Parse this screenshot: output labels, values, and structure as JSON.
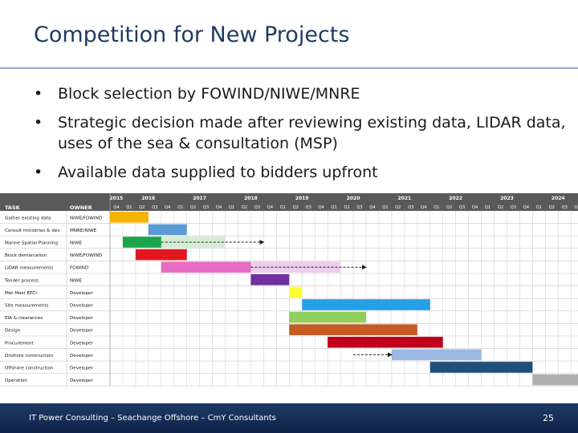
{
  "slide": {
    "title": "Competition for New Projects",
    "bullets": [
      "Block selection by FOWIND/NIWE/MNRE",
      "Strategic decision made after reviewing existing data, LIDAR data, uses of the sea & consultation (MSP)",
      "Available data supplied to bidders upfront"
    ],
    "bullet_glyph": "•"
  },
  "gantt": {
    "header": {
      "task": "TASK",
      "owner": "OWNER"
    },
    "years": [
      "2015",
      "2016",
      "2017",
      "2018",
      "2019",
      "2020",
      "2021",
      "2022",
      "2023",
      "2024"
    ],
    "quarters": [
      "Q4",
      "Q1",
      "Q2",
      "Q3",
      "Q4",
      "Q1",
      "Q2",
      "Q3",
      "Q4",
      "Q1",
      "Q2",
      "Q3",
      "Q4",
      "Q1",
      "Q2",
      "Q3",
      "Q4",
      "Q1",
      "Q2",
      "Q3",
      "Q4",
      "Q1",
      "Q2",
      "Q3",
      "Q4",
      "Q1",
      "Q2",
      "Q3",
      "Q4",
      "Q1",
      "Q2",
      "Q3",
      "Q4",
      "Q1",
      "Q2",
      "Q3",
      "Q4"
    ],
    "tasks": [
      {
        "task": "Gather existing data",
        "owner": "NIWE/FOWIND",
        "start": 0,
        "end": 3,
        "color": "#f5b400"
      },
      {
        "task": "Consult ministries & dev",
        "owner": "MNRE/NIWE",
        "start": 3,
        "end": 6,
        "color": "#5b9bd5"
      },
      {
        "task": "Marine Spatial Planning",
        "owner": "NIWE",
        "start": 1,
        "end": 4,
        "color": "#1ba44a",
        "ext_end": 9,
        "ext_color": "#d3ecd3"
      },
      {
        "task": "Block demarcation",
        "owner": "NIWE/FOWIND",
        "start": 2,
        "end": 6,
        "color": "#e3161e"
      },
      {
        "task": "LIDAR measurements",
        "owner": "FOWIND",
        "start": 4,
        "end": 11,
        "color": "#e86bc4",
        "ext_end": 18,
        "ext_color": "#efcdec"
      },
      {
        "task": "Tender process",
        "owner": "NIWE",
        "start": 11,
        "end": 14,
        "color": "#7030a0"
      },
      {
        "task": "Met Mast EPCI",
        "owner": "Developer",
        "start": 14,
        "end": 15,
        "color": "#ffff33"
      },
      {
        "task": "Site measurements",
        "owner": "Developer",
        "start": 15,
        "end": 25,
        "color": "#23a0e8"
      },
      {
        "task": "EIA & clearances",
        "owner": "Developer",
        "start": 14,
        "end": 20,
        "color": "#8fcf5a"
      },
      {
        "task": "Design",
        "owner": "Developer",
        "start": 14,
        "end": 24,
        "color": "#c55a24"
      },
      {
        "task": "Procurement",
        "owner": "Developer",
        "start": 17,
        "end": 26,
        "color": "#c0001a"
      },
      {
        "task": "Onshore construction",
        "owner": "Developer",
        "start": 22,
        "end": 29,
        "color": "#9bb7e3"
      },
      {
        "task": "Offshore construction",
        "owner": "Developer",
        "start": 25,
        "end": 33,
        "color": "#1f4e79"
      },
      {
        "task": "Operation",
        "owner": "Developer",
        "start": 33,
        "end": 37,
        "color": "#b0b0b0"
      }
    ],
    "arrows": [
      {
        "row": 2,
        "from": 4,
        "to": 12
      },
      {
        "row": 4,
        "from": 11,
        "to": 20
      },
      {
        "row": 11,
        "from": 19,
        "to": 22
      }
    ]
  },
  "footer": {
    "credit": "IT Power Consulting – Seachange Offshore – CmY Consultants",
    "page_number": "25"
  }
}
